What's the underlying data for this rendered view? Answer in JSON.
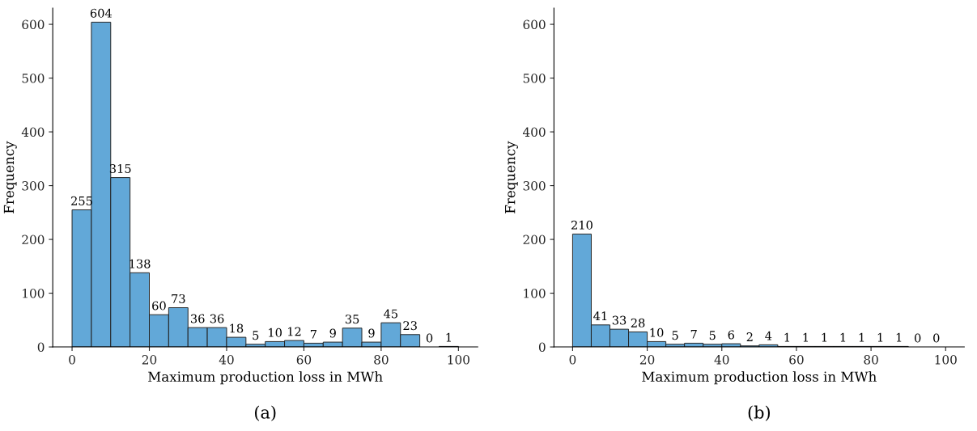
{
  "chart_data": [
    {
      "type": "histogram",
      "xlabel": "Maximum production loss in MWh",
      "ylabel": "Frequency",
      "annotations": [
        "(a)"
      ],
      "bins": [
        0,
        5,
        10,
        15,
        20,
        25,
        30,
        35,
        40,
        45,
        50,
        55,
        60,
        65,
        70,
        75,
        80,
        85,
        90,
        95,
        100
      ],
      "values": [
        255,
        604,
        315,
        138,
        60,
        73,
        36,
        36,
        18,
        5,
        10,
        12,
        7,
        9,
        35,
        9,
        45,
        23,
        0,
        1
      ],
      "color": "#62a8d8",
      "data_labels": true,
      "xlim": [
        -5,
        105
      ],
      "ylim": [
        0,
        630
      ],
      "xticks": [
        0,
        20,
        40,
        60,
        80,
        100
      ],
      "yticks": [
        0,
        100,
        200,
        300,
        400,
        500,
        600
      ],
      "grid": false
    },
    {
      "type": "histogram",
      "xlabel": "Maximum production loss in MWh",
      "ylabel": "Frequency",
      "annotations": [
        "(b)"
      ],
      "bins": [
        0,
        5,
        10,
        15,
        20,
        25,
        30,
        35,
        40,
        45,
        50,
        55,
        60,
        65,
        70,
        75,
        80,
        85,
        90,
        95,
        100
      ],
      "values": [
        210,
        41,
        33,
        28,
        10,
        5,
        7,
        5,
        6,
        2,
        4,
        1,
        1,
        1,
        1,
        1,
        1,
        1,
        0,
        0
      ],
      "color": "#62a8d8",
      "data_labels": true,
      "xlim": [
        -5,
        105
      ],
      "ylim": [
        0,
        630
      ],
      "xticks": [
        0,
        20,
        40,
        60,
        80,
        100
      ],
      "yticks": [
        0,
        100,
        200,
        300,
        400,
        500,
        600
      ],
      "grid": false
    }
  ]
}
